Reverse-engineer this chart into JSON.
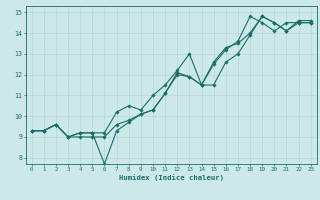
{
  "title": "",
  "xlabel": "Humidex (Indice chaleur)",
  "ylabel": "",
  "xlim": [
    -0.5,
    23.5
  ],
  "ylim": [
    7.7,
    15.3
  ],
  "yticks": [
    8,
    9,
    10,
    11,
    12,
    13,
    14,
    15
  ],
  "xticks": [
    0,
    1,
    2,
    3,
    4,
    5,
    6,
    7,
    8,
    9,
    10,
    11,
    12,
    13,
    14,
    15,
    16,
    17,
    18,
    19,
    20,
    21,
    22,
    23
  ],
  "bg_color": "#cce8e8",
  "grid_color": "#b8d4d4",
  "line_color": "#1a6e6a",
  "line1_x": [
    0,
    1,
    2,
    3,
    4,
    5,
    6,
    7,
    8,
    9,
    10,
    11,
    12,
    13,
    14,
    15,
    16,
    17,
    18,
    19,
    20,
    21,
    22,
    23
  ],
  "line1_y": [
    9.3,
    9.3,
    9.6,
    9.0,
    9.0,
    9.0,
    9.0,
    9.6,
    9.8,
    10.1,
    10.3,
    11.1,
    12.1,
    11.9,
    11.5,
    11.5,
    12.6,
    13.0,
    13.9,
    14.8,
    14.5,
    14.1,
    14.5,
    14.5
  ],
  "line2_x": [
    0,
    1,
    2,
    3,
    4,
    5,
    6,
    7,
    8,
    9,
    10,
    11,
    12,
    13,
    14,
    15,
    16,
    17,
    18,
    19,
    20,
    21,
    22,
    23
  ],
  "line2_y": [
    9.3,
    9.3,
    9.6,
    9.0,
    9.2,
    9.2,
    7.7,
    9.3,
    9.7,
    10.1,
    10.3,
    11.1,
    12.0,
    11.9,
    11.5,
    12.5,
    13.2,
    13.6,
    14.8,
    14.5,
    14.1,
    14.5,
    14.5,
    14.5
  ],
  "line3_x": [
    0,
    1,
    2,
    3,
    4,
    5,
    6,
    7,
    8,
    9,
    10,
    11,
    12,
    13,
    14,
    15,
    16,
    17,
    18,
    19,
    20,
    21,
    22,
    23
  ],
  "line3_y": [
    9.3,
    9.3,
    9.6,
    9.0,
    9.2,
    9.2,
    9.2,
    10.2,
    10.5,
    10.3,
    11.0,
    11.5,
    12.2,
    13.0,
    11.5,
    12.6,
    13.3,
    13.5,
    14.0,
    14.8,
    14.5,
    14.1,
    14.6,
    14.6
  ]
}
